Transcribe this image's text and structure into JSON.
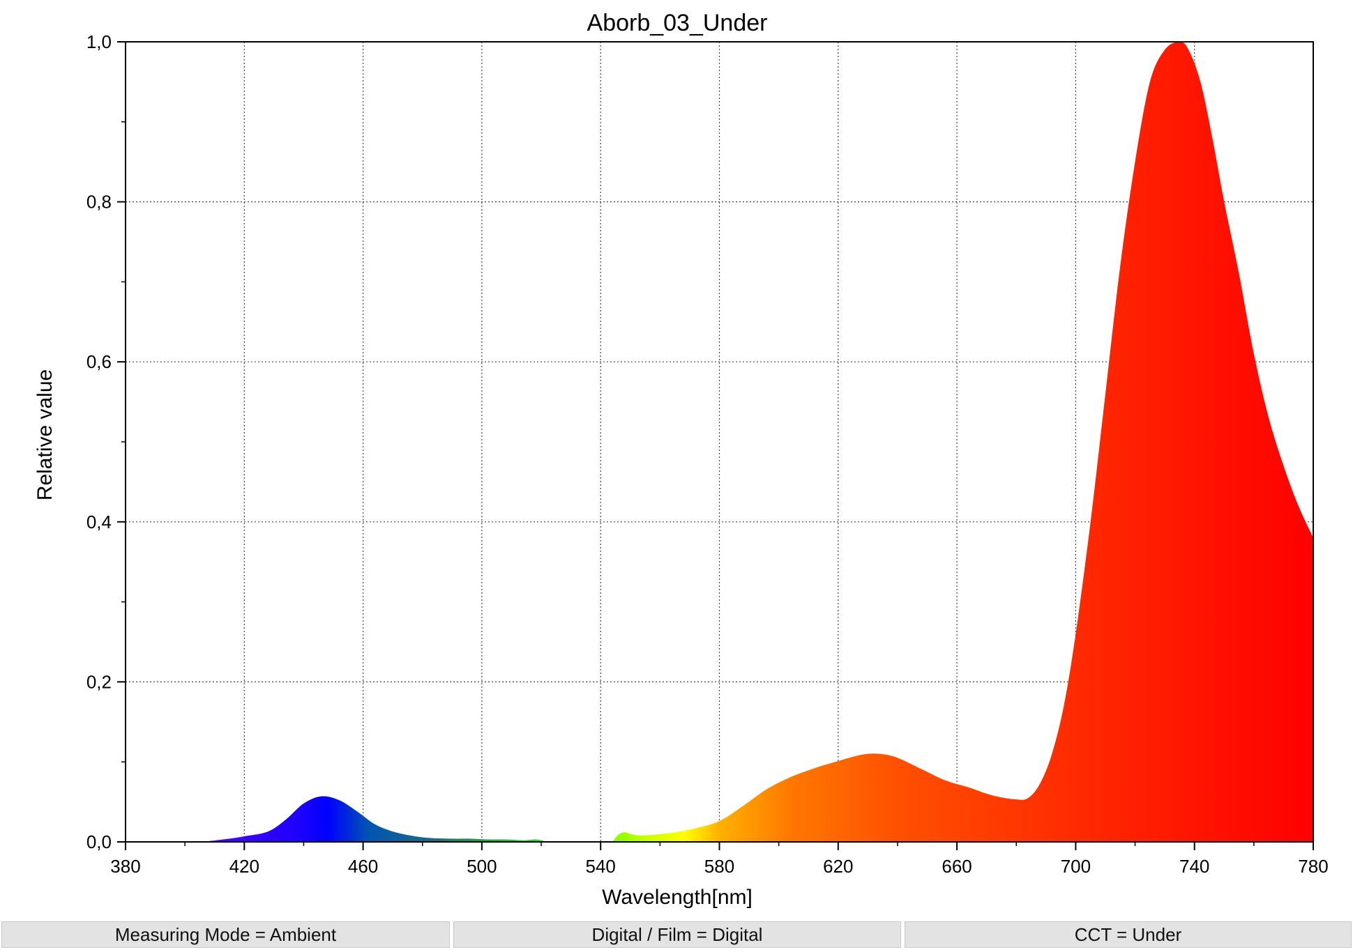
{
  "chart_data": {
    "type": "area",
    "title": "Aborb_03_Under",
    "xlabel": "Wavelength[nm]",
    "ylabel": "Relative value",
    "xlim": [
      380,
      780
    ],
    "ylim": [
      0,
      1.0
    ],
    "x_ticks": [
      380,
      420,
      460,
      500,
      540,
      580,
      620,
      660,
      700,
      740,
      780
    ],
    "x_tick_labels": [
      "380",
      "420",
      "460",
      "500",
      "540",
      "580",
      "620",
      "660",
      "700",
      "740",
      "780"
    ],
    "y_ticks": [
      0,
      0.2,
      0.4,
      0.6,
      0.8,
      1.0
    ],
    "y_tick_labels": [
      "0,0",
      "0,2",
      "0,4",
      "0,6",
      "0,8",
      "1,0"
    ],
    "grid": true,
    "fill": "visible-spectrum gradient",
    "series": [
      {
        "x": [
          406,
          415,
          420,
          428,
          434,
          440,
          446,
          452,
          458,
          464,
          470,
          476,
          482,
          490,
          496,
          502,
          508,
          514,
          518,
          520,
          522
        ],
        "y": [
          0.0,
          0.004,
          0.007,
          0.013,
          0.028,
          0.048,
          0.057,
          0.052,
          0.038,
          0.022,
          0.013,
          0.008,
          0.005,
          0.004,
          0.004,
          0.003,
          0.003,
          0.002,
          0.003,
          0.002,
          0.0
        ]
      },
      {
        "x": [
          544,
          546,
          548,
          550,
          553,
          558,
          565,
          572,
          580,
          588,
          596,
          604,
          612,
          620,
          628,
          634,
          640,
          648,
          656,
          664,
          672,
          680,
          684,
          688,
          692,
          696,
          700,
          705,
          710,
          715,
          720,
          725,
          730,
          735,
          738,
          742,
          746,
          750,
          755,
          760,
          765,
          770,
          775,
          780
        ],
        "y": [
          0.0,
          0.009,
          0.012,
          0.01,
          0.008,
          0.009,
          0.012,
          0.017,
          0.026,
          0.045,
          0.066,
          0.081,
          0.092,
          0.101,
          0.109,
          0.11,
          0.105,
          0.091,
          0.077,
          0.068,
          0.058,
          0.053,
          0.055,
          0.073,
          0.11,
          0.17,
          0.26,
          0.4,
          0.56,
          0.72,
          0.85,
          0.95,
          0.99,
          1.0,
          0.99,
          0.95,
          0.88,
          0.8,
          0.71,
          0.61,
          0.53,
          0.47,
          0.42,
          0.38
        ]
      }
    ]
  },
  "status_bar": [
    {
      "label": "Measuring Mode = Ambient"
    },
    {
      "label": "Digital / Film = Digital"
    },
    {
      "label": "CCT = Under"
    }
  ]
}
